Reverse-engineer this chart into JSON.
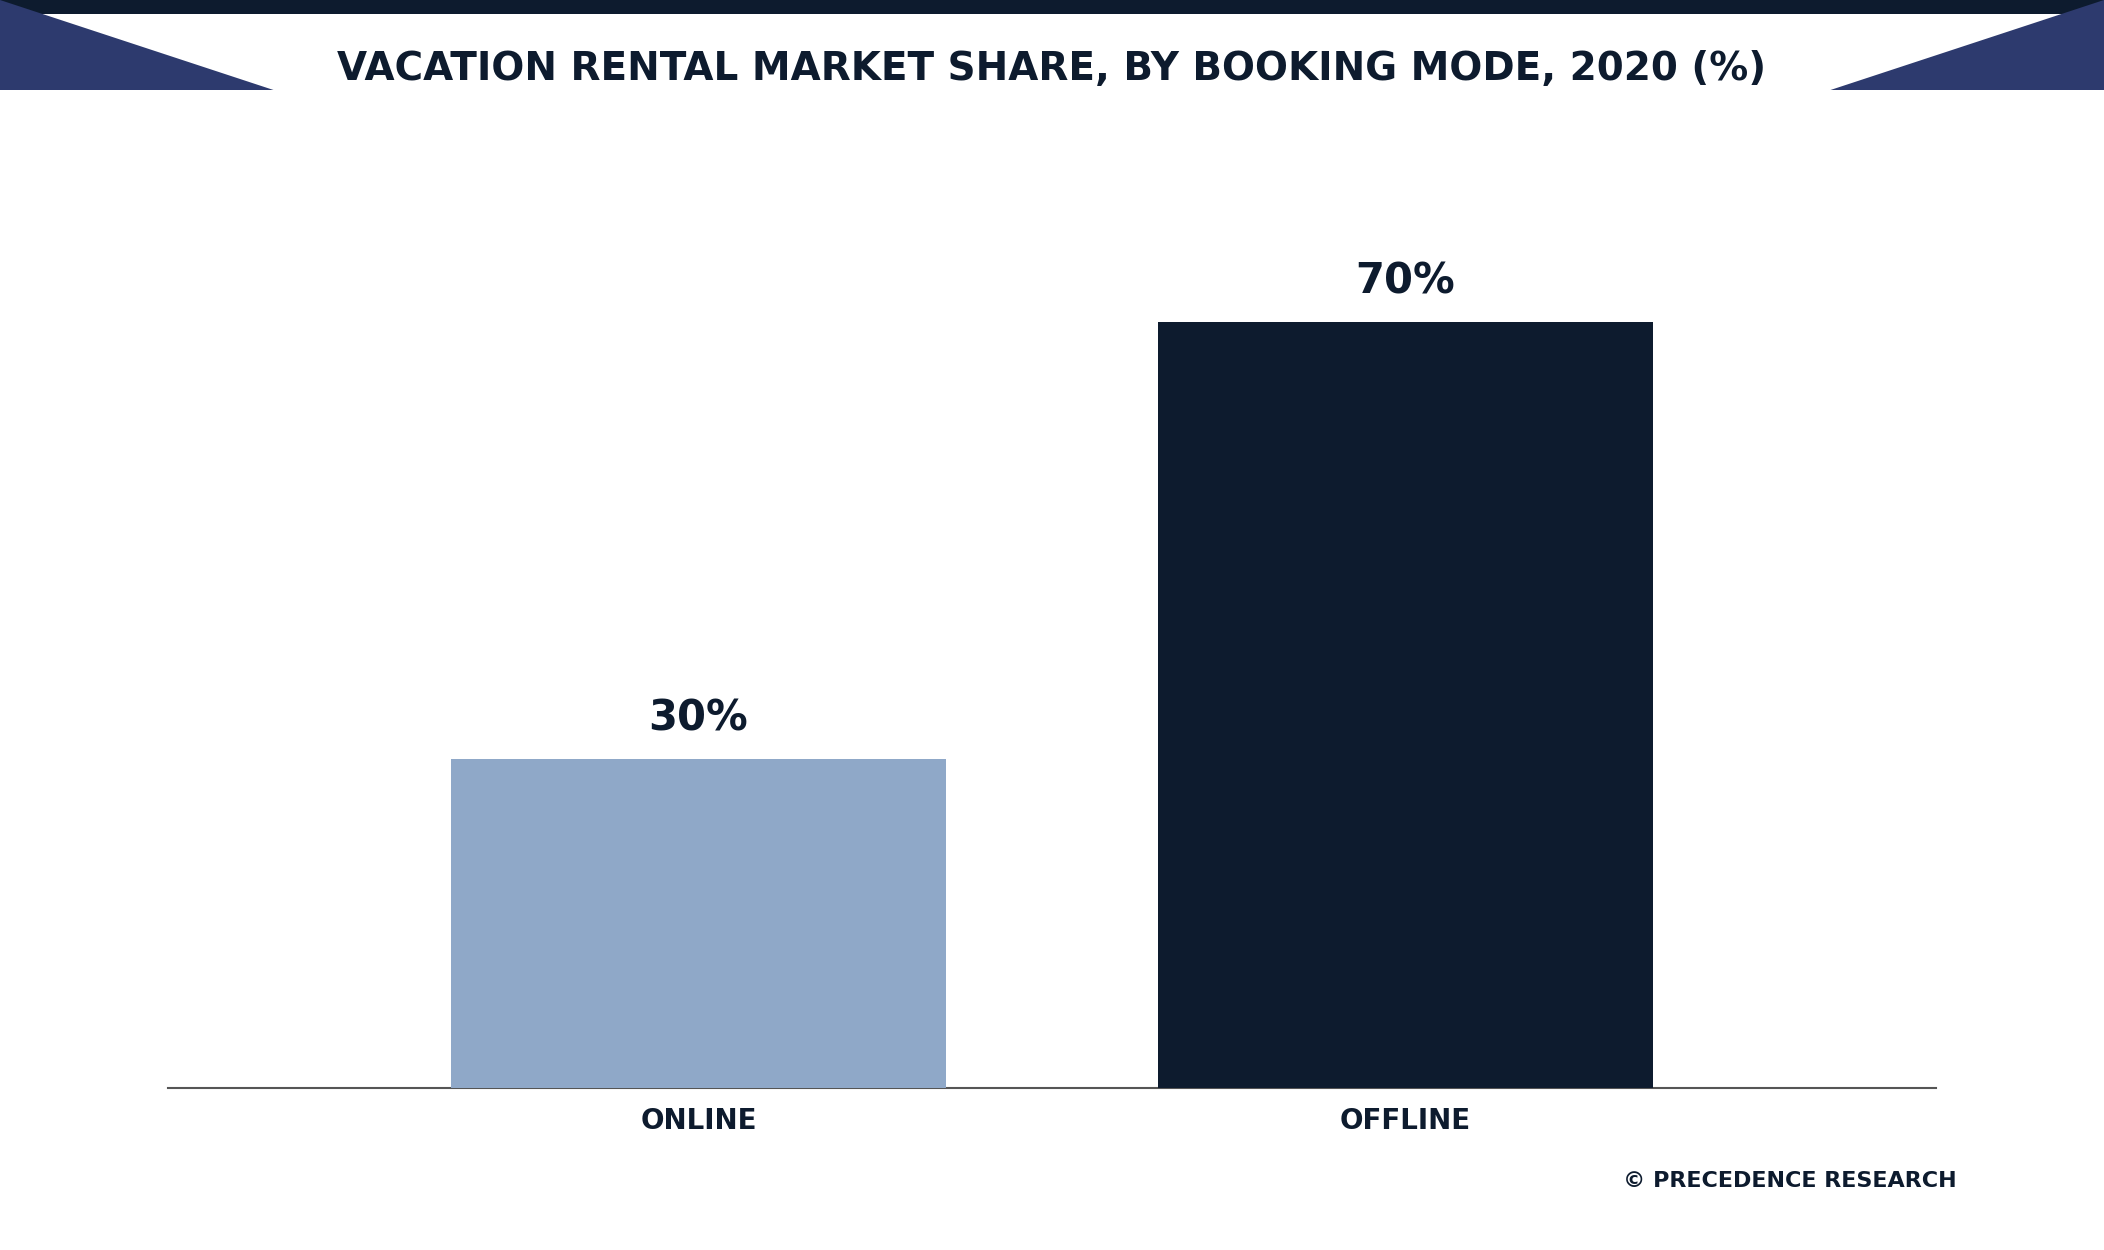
{
  "title": "VACATION RENTAL MARKET SHARE, BY BOOKING MODE, 2020 (%)",
  "categories": [
    "ONLINE",
    "OFFLINE"
  ],
  "values": [
    30,
    70
  ],
  "bar_colors": [
    "#8fa8c8",
    "#0d1b2e"
  ],
  "label_texts": [
    "30%",
    "70%"
  ],
  "title_color": "#0d1b2e",
  "title_fontsize": 28,
  "bar_label_fontsize": 30,
  "xlabel_fontsize": 20,
  "background_color": "#ffffff",
  "footer_color": "#0d1b2e",
  "copyright_text": "© PRECEDENCE RESEARCH",
  "corner_color": "#2d3a6e",
  "dark_bar_color": "#0d1b2e",
  "axis_line_color": "#555555",
  "ylim": [
    0,
    80
  ],
  "bar_width": 0.28,
  "bar_positions": [
    0.3,
    0.7
  ]
}
